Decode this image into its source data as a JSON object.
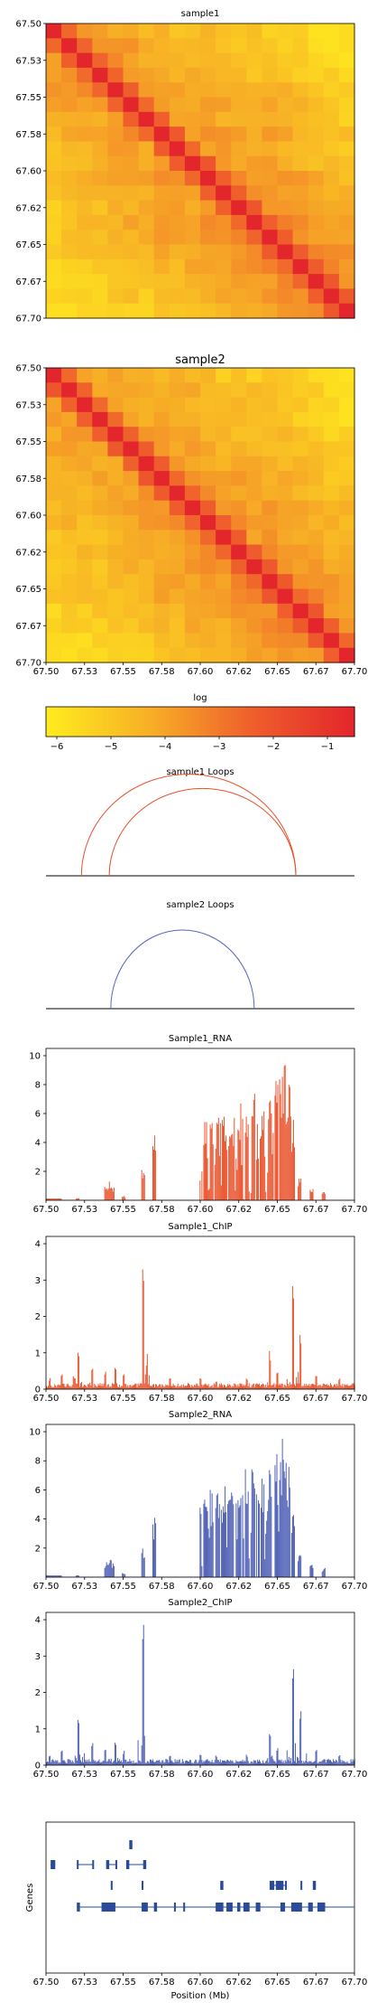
{
  "x_ticks": [
    "67.50",
    "67.53",
    "67.55",
    "67.58",
    "67.60",
    "67.62",
    "67.65",
    "67.67",
    "67.70"
  ],
  "y_ticks": [
    "67.50",
    "67.53",
    "67.55",
    "67.58",
    "67.60",
    "67.62",
    "67.65",
    "67.67",
    "67.70"
  ],
  "heatmaps": [
    {
      "title": "sample1",
      "seed": 11
    },
    {
      "title": "sample2",
      "seed": 37
    }
  ],
  "colorbar": {
    "label": "log",
    "ticks": [
      "−6",
      "−5",
      "−4",
      "−3",
      "−2",
      "−1"
    ],
    "colors": [
      "#ffeb1e",
      "#f7b026",
      "#ef5f2c",
      "#e3262b"
    ],
    "min": -6.2,
    "max": -0.5
  },
  "loops": [
    {
      "title": "sample1 Loops",
      "color": "#e8512c",
      "arcs": [
        [
          67.523,
          67.662
        ],
        [
          67.541,
          67.662
        ]
      ]
    },
    {
      "title": "sample2 Loops",
      "color": "#5565b7",
      "arcs": [
        [
          67.542,
          67.635
        ]
      ]
    }
  ],
  "tracks": [
    {
      "title": "Sample1_RNA",
      "color": "#ea5a35",
      "yticks": [
        "2",
        "4",
        "6",
        "8",
        "10"
      ],
      "ymax": 10.5,
      "kind": "rna",
      "seed": 5
    },
    {
      "title": "Sample1_ChIP",
      "color": "#ea5a35",
      "yticks": [
        "0",
        "1",
        "2",
        "3",
        "4"
      ],
      "ymax": 4.2,
      "kind": "chip",
      "seed": 9
    },
    {
      "title": "Sample2_RNA",
      "color": "#5565b7",
      "yticks": [
        "2",
        "4",
        "6",
        "8",
        "10"
      ],
      "ymax": 10.5,
      "kind": "rna",
      "seed": 13
    },
    {
      "title": "Sample2_ChIP",
      "color": "#5565b7",
      "yticks": [
        "0",
        "1",
        "2",
        "3",
        "4"
      ],
      "ymax": 4.2,
      "kind": "chip",
      "seed": 21
    }
  ],
  "genes": {
    "ylabel": "Genes",
    "xlabel": "Position (Mb)",
    "color": "#2a4b9a"
  },
  "chart_data": [
    {
      "type": "heatmap",
      "title": "sample1",
      "x_range": [
        67.5,
        67.7
      ],
      "y_range": [
        67.5,
        67.7
      ],
      "bins": 20,
      "color_scale": "log"
    },
    {
      "type": "heatmap",
      "title": "sample2",
      "x_range": [
        67.5,
        67.7
      ],
      "y_range": [
        67.5,
        67.7
      ],
      "bins": 20,
      "color_scale": "log"
    },
    {
      "type": "line",
      "title": "sample1 Loops",
      "arcs": [
        [
          67.523,
          67.662
        ],
        [
          67.541,
          67.662
        ]
      ]
    },
    {
      "type": "line",
      "title": "sample2 Loops",
      "arcs": [
        [
          67.542,
          67.635
        ]
      ]
    },
    {
      "type": "bar",
      "title": "Sample1_RNA",
      "x_range": [
        67.5,
        67.7
      ],
      "ylim": [
        0,
        10.5
      ]
    },
    {
      "type": "bar",
      "title": "Sample1_ChIP",
      "x_range": [
        67.5,
        67.7
      ],
      "ylim": [
        0,
        4.2
      ]
    },
    {
      "type": "bar",
      "title": "Sample2_RNA",
      "x_range": [
        67.5,
        67.7
      ],
      "ylim": [
        0,
        10.5
      ]
    },
    {
      "type": "bar",
      "title": "Sample2_ChIP",
      "x_range": [
        67.5,
        67.7
      ],
      "ylim": [
        0,
        4.2
      ]
    },
    {
      "type": "other",
      "title": "",
      "ylabel": "Genes",
      "xlabel": "Position (Mb)",
      "x_range": [
        67.5,
        67.7
      ]
    }
  ]
}
